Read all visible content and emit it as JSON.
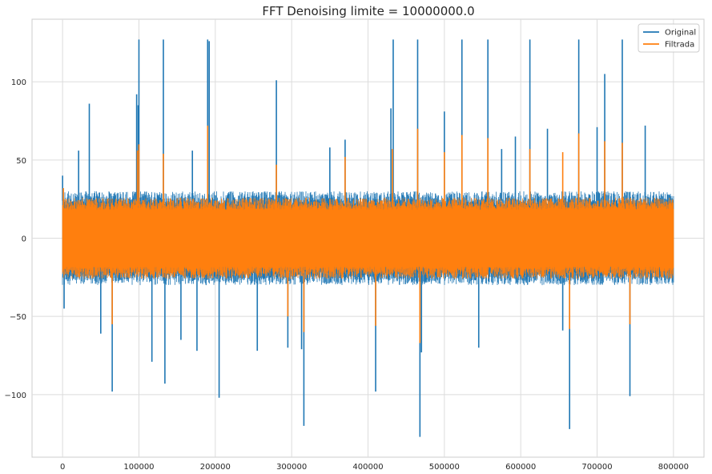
{
  "chart_data": {
    "type": "line",
    "title": "FFT Denoising limite = 10000000.0",
    "xlabel": "",
    "ylabel": "",
    "xlim": [
      -40000,
      840000
    ],
    "ylim": [
      -140,
      140
    ],
    "x_ticks": [
      0,
      100000,
      200000,
      300000,
      400000,
      500000,
      600000,
      700000,
      800000
    ],
    "y_ticks": [
      -100,
      -50,
      0,
      50,
      100
    ],
    "x_tick_labels": [
      "0",
      "100000",
      "200000",
      "300000",
      "400000",
      "500000",
      "600000",
      "700000",
      "800000"
    ],
    "y_tick_labels": [
      "−100",
      "−50",
      "0",
      "50",
      "100"
    ],
    "grid": true,
    "legend_position": "top-right",
    "series": [
      {
        "name": "Original",
        "color": "#1f77b4",
        "band": [
          -30,
          30
        ],
        "spikes": [
          [
            0,
            40
          ],
          [
            2000,
            -45
          ],
          [
            21000,
            56
          ],
          [
            35000,
            86
          ],
          [
            50000,
            -61
          ],
          [
            65000,
            -98
          ],
          [
            97000,
            92
          ],
          [
            99000,
            85
          ],
          [
            100000,
            127
          ],
          [
            117000,
            -79
          ],
          [
            132000,
            127
          ],
          [
            134000,
            -93
          ],
          [
            155000,
            -65
          ],
          [
            170000,
            56
          ],
          [
            176000,
            -72
          ],
          [
            190000,
            127
          ],
          [
            192000,
            126
          ],
          [
            205000,
            -102
          ],
          [
            255000,
            -72
          ],
          [
            280000,
            101
          ],
          [
            295000,
            -70
          ],
          [
            313000,
            -71
          ],
          [
            316000,
            -120
          ],
          [
            350000,
            58
          ],
          [
            370000,
            63
          ],
          [
            410000,
            -98
          ],
          [
            430000,
            83
          ],
          [
            433000,
            127
          ],
          [
            465000,
            127
          ],
          [
            468000,
            -127
          ],
          [
            470000,
            -73
          ],
          [
            500000,
            81
          ],
          [
            523000,
            127
          ],
          [
            545000,
            -70
          ],
          [
            557000,
            127
          ],
          [
            575000,
            57
          ],
          [
            593000,
            65
          ],
          [
            612000,
            127
          ],
          [
            635000,
            70
          ],
          [
            655000,
            -59
          ],
          [
            664000,
            -122
          ],
          [
            676000,
            127
          ],
          [
            700000,
            71
          ],
          [
            710000,
            105
          ],
          [
            733000,
            127
          ],
          [
            743000,
            -101
          ],
          [
            763000,
            72
          ]
        ]
      },
      {
        "name": "Filtrada",
        "color": "#ff7f0e",
        "band": [
          -26,
          26
        ],
        "spikes": [
          [
            1000,
            32
          ],
          [
            65000,
            -55
          ],
          [
            98000,
            56
          ],
          [
            100000,
            60
          ],
          [
            132000,
            54
          ],
          [
            190000,
            72
          ],
          [
            280000,
            47
          ],
          [
            295000,
            -50
          ],
          [
            316000,
            -60
          ],
          [
            370000,
            52
          ],
          [
            410000,
            -56
          ],
          [
            432000,
            57
          ],
          [
            465000,
            70
          ],
          [
            468000,
            -67
          ],
          [
            500000,
            55
          ],
          [
            523000,
            66
          ],
          [
            557000,
            64
          ],
          [
            612000,
            57
          ],
          [
            655000,
            55
          ],
          [
            664000,
            -58
          ],
          [
            676000,
            67
          ],
          [
            710000,
            62
          ],
          [
            733000,
            61
          ],
          [
            743000,
            -55
          ]
        ]
      }
    ]
  }
}
